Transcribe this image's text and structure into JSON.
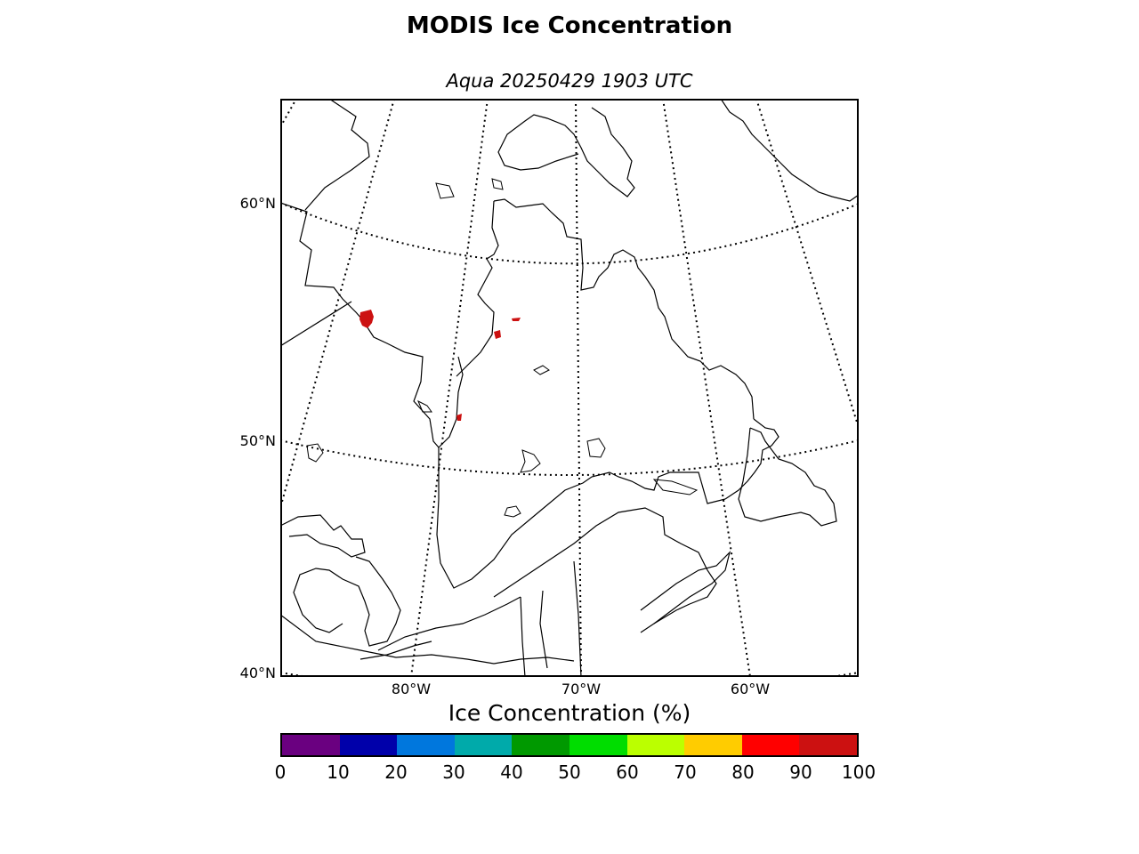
{
  "title": "MODIS Ice Concentration",
  "subtitle": "Aqua 20250429 1903 UTC",
  "map": {
    "lat_labels": [
      "60°N",
      "50°N",
      "40°N"
    ],
    "lon_labels": [
      "80°W",
      "70°W",
      "60°W"
    ],
    "ice_color": "#cc1111",
    "coast_color": "#000000",
    "graticule_style": "dotted"
  },
  "colorbar": {
    "label": "Ice Concentration (%)",
    "ticks": [
      "0",
      "10",
      "20",
      "30",
      "40",
      "50",
      "60",
      "70",
      "80",
      "90",
      "100"
    ],
    "colors": [
      "#6a0080",
      "#0000aa",
      "#0077dd",
      "#00aaaa",
      "#009900",
      "#00dd00",
      "#bbff00",
      "#ffcc00",
      "#ff0000",
      "#cc1111"
    ]
  }
}
